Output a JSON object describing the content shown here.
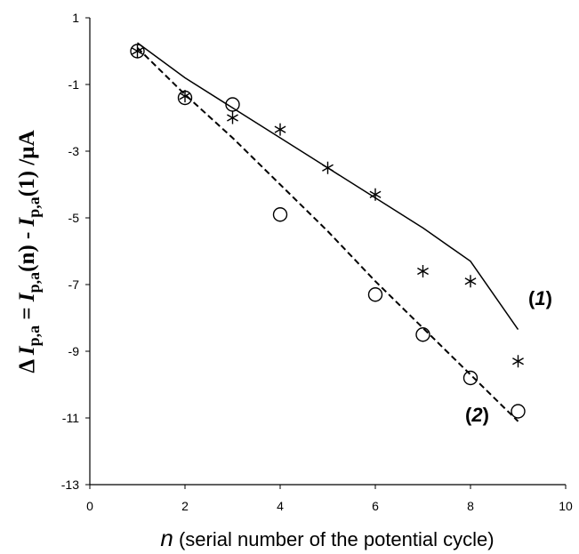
{
  "chart_data": {
    "type": "scatter",
    "title": "",
    "xlabel_italic": "n",
    "xlabel_rest": " (serial number of the potential cycle)",
    "ylabel": {
      "delta": "Δ",
      "I1": "I",
      "sub1": "p,a",
      "mid": " = ",
      "I2": "I",
      "sub2": "p,a",
      "arg2": "(n) - ",
      "I3": "I",
      "sub3": "p,a",
      "arg3": "(1) /µA"
    },
    "xlim": [
      0,
      10
    ],
    "ylim": [
      -13,
      1
    ],
    "xticks": [
      0,
      2,
      4,
      6,
      8,
      10
    ],
    "yticks": [
      1,
      -1,
      -3,
      -5,
      -7,
      -9,
      -11,
      -13
    ],
    "grid": false,
    "series": [
      {
        "name": "(1)",
        "marker": "asterisk",
        "x": [
          1,
          2,
          3,
          4,
          5,
          6,
          7,
          8,
          9
        ],
        "y": [
          0,
          -1.35,
          -2.0,
          -2.35,
          -3.5,
          -4.3,
          -6.6,
          -6.9,
          -9.3
        ],
        "trend": [
          [
            1,
            0.25
          ],
          [
            2,
            -0.8
          ],
          [
            3,
            -1.7
          ],
          [
            4,
            -2.6
          ],
          [
            5,
            -3.5
          ],
          [
            6,
            -4.4
          ],
          [
            7,
            -5.3
          ],
          [
            8,
            -6.3
          ],
          [
            9,
            -8.35
          ]
        ],
        "trend_style": "solid"
      },
      {
        "name": "(2)",
        "marker": "circle",
        "x": [
          1,
          2,
          3,
          4,
          6,
          7,
          8,
          9
        ],
        "y": [
          0,
          -1.4,
          -1.6,
          -4.9,
          -7.3,
          -8.5,
          -9.8,
          -10.8
        ],
        "trend": [
          [
            1,
            0.1
          ],
          [
            2,
            -1.3
          ],
          [
            3,
            -2.6
          ],
          [
            4,
            -4.0
          ],
          [
            5,
            -5.4
          ],
          [
            6,
            -6.9
          ],
          [
            7,
            -8.3
          ],
          [
            8,
            -9.7
          ],
          [
            9,
            -11.1
          ]
        ],
        "trend_style": "dashed"
      }
    ]
  }
}
